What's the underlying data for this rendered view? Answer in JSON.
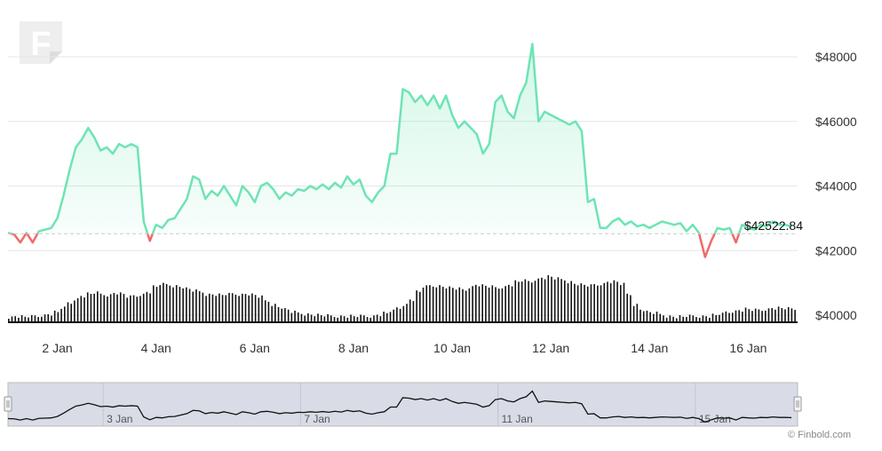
{
  "brand": {
    "logo_letter": "F",
    "credit": "© Finbold.com"
  },
  "colors": {
    "up": "#6ee4b4",
    "down": "#ef6b6b",
    "volume": "#111111",
    "navigator_line": "#111111",
    "navigator_fill": "#d9dce6"
  },
  "last_price_label": "$42522.84",
  "chart_data": {
    "type": "area",
    "title": "",
    "xlabel": "",
    "ylabel": "",
    "grid": true,
    "baseline": 42522.84,
    "ylim": [
      40000,
      48500
    ],
    "y_ticks": [
      {
        "value": 48000,
        "label": "$48000"
      },
      {
        "value": 46000,
        "label": "$46000"
      },
      {
        "value": 44000,
        "label": "$44000"
      },
      {
        "value": 42000,
        "label": "$42000"
      },
      {
        "value": 40000,
        "label": "$40000"
      }
    ],
    "x_range": [
      "2024-01-01T00:00",
      "2024-01-17T00:00"
    ],
    "x_ticks": [
      {
        "date": "2024-01-02",
        "label": "2 Jan"
      },
      {
        "date": "2024-01-04",
        "label": "4 Jan"
      },
      {
        "date": "2024-01-06",
        "label": "6 Jan"
      },
      {
        "date": "2024-01-08",
        "label": "8 Jan"
      },
      {
        "date": "2024-01-10",
        "label": "10 Jan"
      },
      {
        "date": "2024-01-12",
        "label": "12 Jan"
      },
      {
        "date": "2024-01-14",
        "label": "14 Jan"
      },
      {
        "date": "2024-01-16",
        "label": "16 Jan"
      }
    ],
    "series": [
      {
        "values": [
          [
            "2024-01-01T00:00",
            42550
          ],
          [
            "2024-01-01T03:00",
            42500
          ],
          [
            "2024-01-01T06:00",
            42250
          ],
          [
            "2024-01-01T09:00",
            42550
          ],
          [
            "2024-01-01T12:00",
            42250
          ],
          [
            "2024-01-01T15:00",
            42600
          ],
          [
            "2024-01-01T18:00",
            42650
          ],
          [
            "2024-01-01T21:00",
            42700
          ],
          [
            "2024-01-02T00:00",
            43000
          ],
          [
            "2024-01-02T03:00",
            43700
          ],
          [
            "2024-01-02T06:00",
            44500
          ],
          [
            "2024-01-02T09:00",
            45200
          ],
          [
            "2024-01-02T12:00",
            45450
          ],
          [
            "2024-01-02T15:00",
            45800
          ],
          [
            "2024-01-02T18:00",
            45500
          ],
          [
            "2024-01-02T21:00",
            45100
          ],
          [
            "2024-01-03T00:00",
            45200
          ],
          [
            "2024-01-03T03:00",
            45000
          ],
          [
            "2024-01-03T06:00",
            45300
          ],
          [
            "2024-01-03T09:00",
            45200
          ],
          [
            "2024-01-03T12:00",
            45300
          ],
          [
            "2024-01-03T15:00",
            45200
          ],
          [
            "2024-01-03T18:00",
            42900
          ],
          [
            "2024-01-03T21:00",
            42300
          ],
          [
            "2024-01-04T00:00",
            42800
          ],
          [
            "2024-01-04T03:00",
            42700
          ],
          [
            "2024-01-04T06:00",
            42950
          ],
          [
            "2024-01-04T09:00",
            43000
          ],
          [
            "2024-01-04T12:00",
            43300
          ],
          [
            "2024-01-04T15:00",
            43600
          ],
          [
            "2024-01-04T18:00",
            44300
          ],
          [
            "2024-01-04T21:00",
            44200
          ],
          [
            "2024-01-05T00:00",
            43600
          ],
          [
            "2024-01-05T03:00",
            43850
          ],
          [
            "2024-01-05T06:00",
            43700
          ],
          [
            "2024-01-05T09:00",
            44000
          ],
          [
            "2024-01-05T12:00",
            43700
          ],
          [
            "2024-01-05T15:00",
            43400
          ],
          [
            "2024-01-05T18:00",
            44000
          ],
          [
            "2024-01-05T21:00",
            43800
          ],
          [
            "2024-01-06T00:00",
            43500
          ],
          [
            "2024-01-06T03:00",
            44000
          ],
          [
            "2024-01-06T06:00",
            44100
          ],
          [
            "2024-01-06T09:00",
            43900
          ],
          [
            "2024-01-06T12:00",
            43600
          ],
          [
            "2024-01-06T15:00",
            43800
          ],
          [
            "2024-01-06T18:00",
            43700
          ],
          [
            "2024-01-06T21:00",
            43900
          ],
          [
            "2024-01-07T00:00",
            43850
          ],
          [
            "2024-01-07T03:00",
            44000
          ],
          [
            "2024-01-07T06:00",
            43900
          ],
          [
            "2024-01-07T09:00",
            44050
          ],
          [
            "2024-01-07T12:00",
            43900
          ],
          [
            "2024-01-07T15:00",
            44100
          ],
          [
            "2024-01-07T18:00",
            43950
          ],
          [
            "2024-01-07T21:00",
            44300
          ],
          [
            "2024-01-08T00:00",
            44050
          ],
          [
            "2024-01-08T03:00",
            44200
          ],
          [
            "2024-01-08T06:00",
            43700
          ],
          [
            "2024-01-08T09:00",
            43500
          ],
          [
            "2024-01-08T12:00",
            43800
          ],
          [
            "2024-01-08T15:00",
            44000
          ],
          [
            "2024-01-08T18:00",
            45000
          ],
          [
            "2024-01-08T21:00",
            45000
          ],
          [
            "2024-01-09T00:00",
            47000
          ],
          [
            "2024-01-09T03:00",
            46900
          ],
          [
            "2024-01-09T06:00",
            46600
          ],
          [
            "2024-01-09T09:00",
            46800
          ],
          [
            "2024-01-09T12:00",
            46500
          ],
          [
            "2024-01-09T15:00",
            46800
          ],
          [
            "2024-01-09T18:00",
            46400
          ],
          [
            "2024-01-09T21:00",
            46800
          ],
          [
            "2024-01-10T00:00",
            46200
          ],
          [
            "2024-01-10T03:00",
            45800
          ],
          [
            "2024-01-10T06:00",
            46000
          ],
          [
            "2024-01-10T09:00",
            45800
          ],
          [
            "2024-01-10T12:00",
            45600
          ],
          [
            "2024-01-10T15:00",
            45000
          ],
          [
            "2024-01-10T18:00",
            45300
          ],
          [
            "2024-01-10T21:00",
            46600
          ],
          [
            "2024-01-11T00:00",
            46800
          ],
          [
            "2024-01-11T03:00",
            46300
          ],
          [
            "2024-01-11T06:00",
            46100
          ],
          [
            "2024-01-11T09:00",
            46800
          ],
          [
            "2024-01-11T12:00",
            47200
          ],
          [
            "2024-01-11T15:00",
            48400
          ],
          [
            "2024-01-11T18:00",
            46000
          ],
          [
            "2024-01-11T21:00",
            46300
          ],
          [
            "2024-01-12T00:00",
            46200
          ],
          [
            "2024-01-12T03:00",
            46100
          ],
          [
            "2024-01-12T06:00",
            46000
          ],
          [
            "2024-01-12T09:00",
            45900
          ],
          [
            "2024-01-12T12:00",
            46000
          ],
          [
            "2024-01-12T15:00",
            45700
          ],
          [
            "2024-01-12T18:00",
            43500
          ],
          [
            "2024-01-12T21:00",
            43600
          ],
          [
            "2024-01-13T00:00",
            42700
          ],
          [
            "2024-01-13T03:00",
            42700
          ],
          [
            "2024-01-13T06:00",
            42900
          ],
          [
            "2024-01-13T09:00",
            43000
          ],
          [
            "2024-01-13T12:00",
            42800
          ],
          [
            "2024-01-13T15:00",
            42900
          ],
          [
            "2024-01-13T18:00",
            42750
          ],
          [
            "2024-01-13T21:00",
            42800
          ],
          [
            "2024-01-14T00:00",
            42700
          ],
          [
            "2024-01-14T03:00",
            42800
          ],
          [
            "2024-01-14T06:00",
            42900
          ],
          [
            "2024-01-14T09:00",
            42850
          ],
          [
            "2024-01-14T12:00",
            42800
          ],
          [
            "2024-01-14T15:00",
            42850
          ],
          [
            "2024-01-14T18:00",
            42600
          ],
          [
            "2024-01-14T21:00",
            42800
          ],
          [
            "2024-01-15T00:00",
            42550
          ],
          [
            "2024-01-15T03:00",
            41800
          ],
          [
            "2024-01-15T06:00",
            42300
          ],
          [
            "2024-01-15T09:00",
            42700
          ],
          [
            "2024-01-15T12:00",
            42650
          ],
          [
            "2024-01-15T15:00",
            42700
          ],
          [
            "2024-01-15T18:00",
            42250
          ],
          [
            "2024-01-15T21:00",
            42800
          ],
          [
            "2024-01-16T00:00",
            42700
          ],
          [
            "2024-01-16T03:00",
            42650
          ],
          [
            "2024-01-16T06:00",
            42800
          ],
          [
            "2024-01-16T09:00",
            42750
          ],
          [
            "2024-01-16T12:00",
            42900
          ],
          [
            "2024-01-16T15:00",
            42800
          ],
          [
            "2024-01-16T18:00",
            42800
          ],
          [
            "2024-01-16T21:00",
            42750
          ]
        ]
      }
    ],
    "volume_relative": [
      0.1,
      0.12,
      0.11,
      0.11,
      0.12,
      0.14,
      0.16,
      0.2,
      0.28,
      0.38,
      0.46,
      0.52,
      0.56,
      0.58,
      0.55,
      0.54,
      0.58,
      0.56,
      0.5,
      0.52,
      0.55,
      0.6,
      0.7,
      0.75,
      0.74,
      0.72,
      0.7,
      0.66,
      0.62,
      0.6,
      0.55,
      0.55,
      0.54,
      0.55,
      0.56,
      0.55,
      0.56,
      0.54,
      0.5,
      0.42,
      0.35,
      0.3,
      0.25,
      0.2,
      0.18,
      0.16,
      0.15,
      0.14,
      0.13,
      0.12,
      0.12,
      0.12,
      0.12,
      0.12,
      0.12,
      0.12,
      0.15,
      0.18,
      0.22,
      0.28,
      0.35,
      0.45,
      0.6,
      0.7,
      0.72,
      0.72,
      0.7,
      0.68,
      0.66,
      0.64,
      0.7,
      0.74,
      0.72,
      0.7,
      0.68,
      0.7,
      0.74,
      0.8,
      0.82,
      0.8,
      0.85,
      0.88,
      0.9,
      0.86,
      0.84,
      0.8,
      0.76,
      0.74,
      0.72,
      0.74,
      0.76,
      0.8,
      0.8,
      0.75,
      0.55,
      0.35,
      0.25,
      0.2,
      0.18,
      0.15,
      0.12,
      0.11,
      0.11,
      0.12,
      0.12,
      0.12,
      0.12,
      0.14,
      0.16,
      0.2,
      0.22,
      0.24,
      0.26,
      0.24,
      0.24,
      0.26,
      0.28,
      0.28,
      0.27,
      0.26
    ],
    "navigator": {
      "x_ticks": [
        {
          "date": "2024-01-03",
          "label": "3 Jan"
        },
        {
          "date": "2024-01-07",
          "label": "7 Jan"
        },
        {
          "date": "2024-01-11",
          "label": "11 Jan"
        },
        {
          "date": "2024-01-15",
          "label": "15 Jan"
        }
      ]
    }
  }
}
